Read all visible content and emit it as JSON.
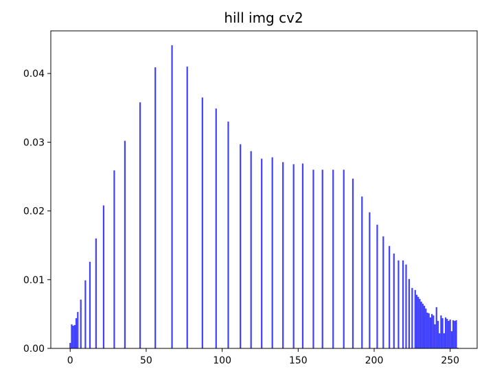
{
  "chart_data": {
    "type": "bar",
    "title": "hill img cv2",
    "xlabel": "",
    "ylabel": "",
    "xlim": [
      -12.75,
      267.75
    ],
    "ylim": [
      0,
      0.0462
    ],
    "x_ticks": [
      0,
      50,
      100,
      150,
      200,
      250
    ],
    "x_tick_labels": [
      "0",
      "50",
      "100",
      "150",
      "200",
      "250"
    ],
    "y_ticks": [
      0.0,
      0.01,
      0.02,
      0.03,
      0.04
    ],
    "y_tick_labels": [
      "0.00",
      "0.01",
      "0.02",
      "0.03",
      "0.04"
    ],
    "grid": false,
    "legend": "none",
    "bar_color": "#0000ff",
    "bar_alpha": 0.75,
    "series": [
      {
        "x": [
          0,
          1,
          2,
          3,
          4,
          5,
          7,
          10,
          13,
          17,
          22,
          29,
          36,
          46,
          56,
          67,
          77,
          87,
          96,
          104,
          112,
          119,
          126,
          133,
          140,
          147,
          153,
          160,
          166,
          173,
          180,
          186,
          192,
          197,
          202,
          206,
          210,
          213,
          216,
          219,
          221,
          223,
          225,
          227,
          228,
          229,
          230,
          231,
          232,
          233,
          234,
          235,
          236,
          237,
          238,
          239,
          240,
          241,
          242,
          243,
          244,
          245,
          246,
          247,
          248,
          249,
          250,
          251,
          252,
          253,
          254,
          255
        ],
        "values": [
          0.0008,
          0.0035,
          0.0033,
          0.0034,
          0.0044,
          0.0053,
          0.0071,
          0.0099,
          0.0126,
          0.016,
          0.0208,
          0.0259,
          0.0302,
          0.0358,
          0.0409,
          0.0441,
          0.041,
          0.0365,
          0.0349,
          0.033,
          0.0297,
          0.0287,
          0.0276,
          0.0278,
          0.0271,
          0.0268,
          0.0269,
          0.026,
          0.026,
          0.026,
          0.026,
          0.0247,
          0.0221,
          0.0198,
          0.018,
          0.0163,
          0.0149,
          0.0138,
          0.0128,
          0.0128,
          0.0122,
          0.0101,
          0.0088,
          0.0085,
          0.0078,
          0.0075,
          0.0072,
          0.0068,
          0.0065,
          0.0062,
          0.0058,
          0.0052,
          0.0051,
          0.0045,
          0.005,
          0.0048,
          0.0035,
          0.006,
          0.004,
          0.0022,
          0.0048,
          0.0044,
          0.0022,
          0.0045,
          0.0043,
          0.004,
          0.0042,
          0.0025,
          0.0041,
          0.004,
          0.0041,
          0.0001
        ]
      }
    ]
  }
}
